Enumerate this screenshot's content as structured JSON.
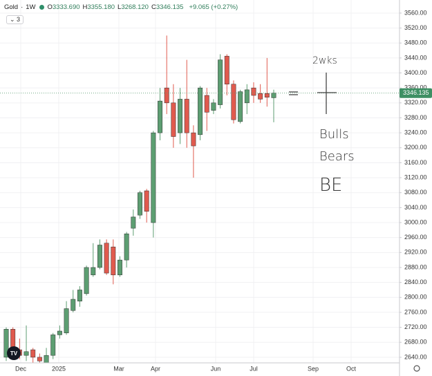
{
  "header": {
    "symbol": "Gold",
    "interval": "1W",
    "ohlc": [
      {
        "label": "O",
        "value": "3333.690"
      },
      {
        "label": "H",
        "value": "3355.180"
      },
      {
        "label": "L",
        "value": "3268.120"
      },
      {
        "label": "C",
        "value": "3346.135"
      }
    ],
    "change": "+9.065 (+0.27%)",
    "indicator_count": "3"
  },
  "chart_data": {
    "type": "candlestick",
    "open": [
      2640,
      2715,
      2660,
      2645,
      2660,
      2640,
      2625,
      2645,
      2700,
      2705,
      2765,
      2790,
      2810,
      2860,
      2880,
      2945,
      2935,
      2860,
      2900,
      2985,
      3020,
      3085,
      3000,
      3240,
      3360,
      3320,
      3240,
      3330,
      3240,
      3235,
      3340,
      3300,
      3315,
      3445,
      3370,
      3270,
      3320,
      3360,
      3345,
      3345,
      3333.69
    ],
    "high": [
      2720,
      2720,
      2690,
      2725,
      2665,
      2650,
      2665,
      2705,
      2725,
      2790,
      2820,
      2830,
      2885,
      2945,
      2955,
      2955,
      2955,
      2910,
      2975,
      3035,
      3085,
      3090,
      3245,
      3360,
      3500,
      3370,
      3360,
      3435,
      3260,
      3365,
      3360,
      3330,
      3450,
      3450,
      3380,
      3355,
      3370,
      3375,
      3370,
      3440,
      3355.18
    ],
    "low": [
      2630,
      2640,
      2635,
      2630,
      2625,
      2615,
      2615,
      2635,
      2690,
      2700,
      2760,
      2775,
      2805,
      2855,
      2875,
      2860,
      2835,
      2855,
      2880,
      2965,
      3010,
      3000,
      2960,
      3220,
      3290,
      3200,
      3210,
      3200,
      3120,
      3220,
      3245,
      3290,
      3305,
      3340,
      3265,
      3265,
      3290,
      3320,
      3320,
      3310,
      3268.12
    ],
    "close": [
      2715,
      2650,
      2645,
      2655,
      2640,
      2630,
      2645,
      2700,
      2710,
      2770,
      2795,
      2820,
      2880,
      2880,
      2940,
      2865,
      2860,
      2900,
      2970,
      3015,
      3080,
      3030,
      3240,
      3325,
      3320,
      3230,
      3330,
      3240,
      3205,
      3360,
      3295,
      3320,
      3435,
      3370,
      3275,
      3350,
      3355,
      3340,
      3330,
      3335,
      3346.135
    ],
    "up_color": "#5d9e72",
    "down_color": "#e05a4e",
    "outline_color": "#2d2d2d",
    "x_labels": [
      "Dec",
      "2025",
      "Mar",
      "Apr",
      "Jun",
      "Jul",
      "Sep",
      "Oct"
    ],
    "ylim": [
      2625,
      3595
    ],
    "yticks": [
      {
        "value": 2640,
        "label": "2640.00"
      },
      {
        "value": 2680,
        "label": "2680.00"
      },
      {
        "value": 2720,
        "label": "2720.00"
      },
      {
        "value": 2760,
        "label": "2760.00"
      },
      {
        "value": 2800,
        "label": "2800.00"
      },
      {
        "value": 2840,
        "label": "2840.00"
      },
      {
        "value": 2880,
        "label": "2880.00"
      },
      {
        "value": 2920,
        "label": "2920.00"
      },
      {
        "value": 2960,
        "label": "2960.00"
      },
      {
        "value": 3000,
        "label": "3000.00"
      },
      {
        "value": 3040,
        "label": "3040.00"
      },
      {
        "value": 3080,
        "label": "3080.00"
      },
      {
        "value": 3120,
        "label": "3120.00"
      },
      {
        "value": 3160,
        "label": "3160.00"
      },
      {
        "value": 3200,
        "label": "3200.00"
      },
      {
        "value": 3240,
        "label": "3240.00"
      },
      {
        "value": 3280,
        "label": "3280.00"
      },
      {
        "value": 3320,
        "label": "3320.00"
      },
      {
        "value": 3360,
        "label": "3360.00"
      },
      {
        "value": 3400,
        "label": "3400.00"
      },
      {
        "value": 3440,
        "label": "3440.00"
      },
      {
        "value": 3480,
        "label": "3480.00"
      },
      {
        "value": 3520,
        "label": "3520.00"
      },
      {
        "value": 3560,
        "label": "3560.00"
      }
    ],
    "grid": true,
    "annotations": [
      "2wks",
      "Bulls",
      "Bears",
      "BE"
    ]
  }
}
